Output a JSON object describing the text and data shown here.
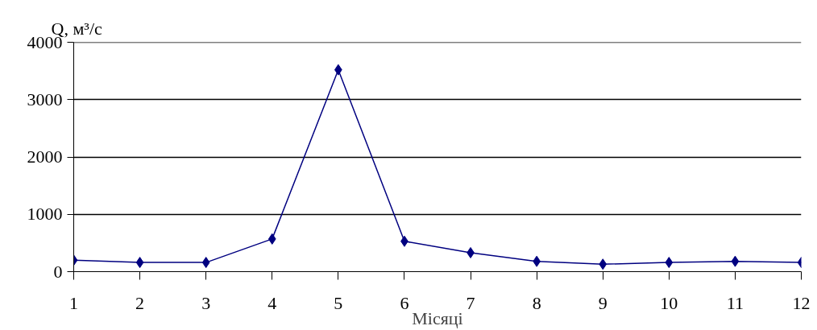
{
  "chart_data": {
    "type": "line",
    "ylabel": "Q, м³/с",
    "xlabel": "Місяці",
    "x": [
      1,
      2,
      3,
      4,
      5,
      6,
      7,
      8,
      9,
      10,
      11,
      12
    ],
    "series": [
      {
        "color": "#000080",
        "values": [
          200,
          160,
          160,
          570,
          3520,
          530,
          330,
          180,
          130,
          160,
          180,
          160
        ]
      }
    ],
    "xlim": [
      1,
      12
    ],
    "xticks": [
      1,
      2,
      3,
      4,
      5,
      6,
      7,
      8,
      9,
      10,
      11,
      12
    ],
    "ylim": [
      0,
      4000
    ],
    "yticks": [
      0,
      1000,
      2000,
      3000,
      4000
    ],
    "grid": "y",
    "marker": "diamond",
    "line_style": "solid"
  }
}
